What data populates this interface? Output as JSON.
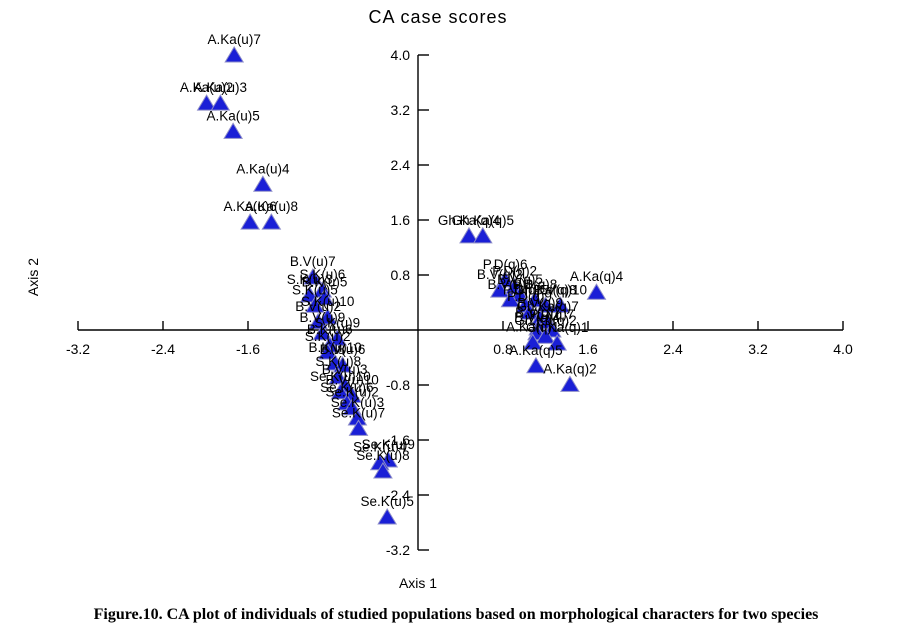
{
  "caption": "Figure.10. CA plot of individuals of studied populations based on morphological characters for two species",
  "chart_data": {
    "type": "scatter",
    "title": "CA case scores",
    "xlabel": "Axis 1",
    "ylabel": "Axis 2",
    "xlim": [
      -3.2,
      4.0
    ],
    "ylim": [
      -3.2,
      4.0
    ],
    "grid": false,
    "legend": "none",
    "x_ticks": [
      -3.2,
      -2.4,
      -1.6,
      -0.8,
      0.8,
      1.6,
      2.4,
      3.2,
      4.0
    ],
    "x_tick_labels": [
      "-3.2",
      "-2.4",
      "-1.6",
      "-0.8",
      "0.8",
      "1.6",
      "2.4",
      "3.2",
      "4.0"
    ],
    "y_ticks": [
      4.0,
      3.2,
      2.4,
      1.6,
      0.8,
      -0.8,
      -1.6,
      -2.4,
      -3.2
    ],
    "y_tick_labels": [
      "4.0",
      "3.2",
      "2.4",
      "1.6",
      "0.8",
      "-0.8",
      "-1.6",
      "-2.4",
      "-3.2"
    ],
    "marker": {
      "shape": "triangle-up",
      "fill": "#1a1fd6",
      "stroke": "#8c8cc8"
    },
    "axis_color": "#000000",
    "points": [
      {
        "label": "A.Ka(u)7",
        "x": -1.73,
        "y": 4.0
      },
      {
        "label": "A.Ka(u)2",
        "x": -1.99,
        "y": 3.3
      },
      {
        "label": "A.Ka(u)3",
        "x": -1.86,
        "y": 3.3
      },
      {
        "label": "A.Ka(u)5",
        "x": -1.74,
        "y": 2.89
      },
      {
        "label": "A.Ka(u)4",
        "x": -1.46,
        "y": 2.12
      },
      {
        "label": "A.Ka(u)6",
        "x": -1.58,
        "y": 1.57
      },
      {
        "label": "A.Ka(u)8",
        "x": -1.38,
        "y": 1.57
      },
      {
        "label": "B.V(u)7",
        "x": -0.99,
        "y": 0.77
      },
      {
        "label": "S.K(u)6",
        "x": -0.9,
        "y": 0.58
      },
      {
        "label": "S.K(u)3",
        "x": -1.02,
        "y": 0.51
      },
      {
        "label": "B.K(u)5",
        "x": -0.88,
        "y": 0.47
      },
      {
        "label": "S.K(u)5",
        "x": -0.97,
        "y": 0.36
      },
      {
        "label": "S.K(u)10",
        "x": -0.85,
        "y": 0.19
      },
      {
        "label": "B.V(u)2",
        "x": -0.94,
        "y": 0.12
      },
      {
        "label": "B.V(u)9",
        "x": -0.9,
        "y": -0.04
      },
      {
        "label": "S.K(u)9",
        "x": -0.76,
        "y": -0.12
      },
      {
        "label": "B.K(u)6",
        "x": -0.83,
        "y": -0.22
      },
      {
        "label": "S.K(u)2",
        "x": -0.85,
        "y": -0.32
      },
      {
        "label": "B.K(u)10",
        "x": -0.78,
        "y": -0.48
      },
      {
        "label": "B.V(u)6",
        "x": -0.71,
        "y": -0.51
      },
      {
        "label": "S.K(u)8",
        "x": -0.75,
        "y": -0.68
      },
      {
        "label": "B.V(u)3",
        "x": -0.69,
        "y": -0.8
      },
      {
        "label": "Se.K(u)10",
        "x": -0.73,
        "y": -0.9
      },
      {
        "label": "B.V(u)10",
        "x": -0.62,
        "y": -0.95
      },
      {
        "label": "Se.K(u)6",
        "x": -0.67,
        "y": -1.06
      },
      {
        "label": "Se.K(u)2",
        "x": -0.62,
        "y": -1.13
      },
      {
        "label": "Se.K(u)3",
        "x": -0.57,
        "y": -1.28
      },
      {
        "label": "Se.K(u)7",
        "x": -0.56,
        "y": -1.43
      },
      {
        "label": "Se.K(u)9",
        "x": -0.28,
        "y": -1.89
      },
      {
        "label": "Se.K(u)4",
        "x": -0.36,
        "y": -1.93
      },
      {
        "label": "Se.K(u)8",
        "x": -0.33,
        "y": -2.05
      },
      {
        "label": "Se.K(u)5",
        "x": -0.29,
        "y": -2.72
      },
      {
        "label": "Gh.Ka(q)4",
        "x": 0.48,
        "y": 1.37
      },
      {
        "label": "Gh.Ka(q)5",
        "x": 0.61,
        "y": 1.37
      },
      {
        "label": "P.D(q)6",
        "x": 0.82,
        "y": 0.73
      },
      {
        "label": "B.V(q)2",
        "x": 0.77,
        "y": 0.58
      },
      {
        "label": "P.D(q)2",
        "x": 0.91,
        "y": 0.63
      },
      {
        "label": "B.V(q)5",
        "x": 0.96,
        "y": 0.51
      },
      {
        "label": "B.V(q)8",
        "x": 0.87,
        "y": 0.44
      },
      {
        "label": "P.D(q)8",
        "x": 1.1,
        "y": 0.44
      },
      {
        "label": "P.D(q)5",
        "x": 1.01,
        "y": 0.36
      },
      {
        "label": "Gh.Ka(q)8",
        "x": 1.2,
        "y": 0.36
      },
      {
        "label": "B.V(q)10",
        "x": 1.34,
        "y": 0.36
      },
      {
        "label": "P.D(q)9",
        "x": 1.05,
        "y": 0.26
      },
      {
        "label": "B.V(q)9",
        "x": 1.15,
        "y": 0.17
      },
      {
        "label": "Gh.Ka(q)7",
        "x": 1.22,
        "y": 0.12
      },
      {
        "label": "B.V(q)7",
        "x": 1.13,
        "y": 0.03
      },
      {
        "label": "P.D(q)7",
        "x": 1.26,
        "y": 0.0
      },
      {
        "label": "B.V(q)4",
        "x": 1.12,
        "y": -0.04
      },
      {
        "label": "Gh.Ka(q)2",
        "x": 1.2,
        "y": -0.09
      },
      {
        "label": "A.Ka(q)1",
        "x": 1.08,
        "y": -0.18
      },
      {
        "label": "Gh.Ka(q)1",
        "x": 1.31,
        "y": -0.19
      },
      {
        "label": "A.Ka(q)4",
        "x": 1.68,
        "y": 0.55
      },
      {
        "label": "A.Ka(q)5",
        "x": 1.11,
        "y": -0.52
      },
      {
        "label": "A.Ka(q)2",
        "x": 1.43,
        "y": -0.79
      }
    ]
  }
}
